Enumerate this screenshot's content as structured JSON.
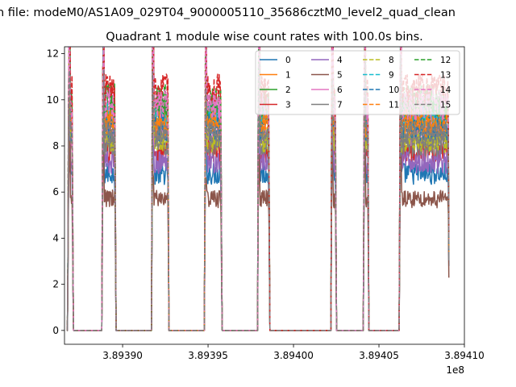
{
  "figure": {
    "suptitle": "n file: modeM0/AS1A09_029T04_9000005110_35686cztM0_level2_quad_clean"
  },
  "chart_data": {
    "type": "line",
    "title": "Quadrant 1 module wise count rates with 100.0s bins.",
    "xlabel": "",
    "ylabel": "",
    "x_offset_label": "1e8",
    "xlim": [
      3.893866,
      3.8941
    ],
    "ylim": [
      -0.6,
      12.3
    ],
    "x_ticks": [
      3.8939,
      3.89395,
      3.894,
      3.89405,
      3.8941
    ],
    "x_tick_labels": [
      "3.89390",
      "3.89395",
      "3.89400",
      "3.89405",
      "3.89410"
    ],
    "y_ticks": [
      0,
      2,
      4,
      6,
      8,
      10,
      12
    ],
    "y_tick_labels": [
      "0",
      "2",
      "4",
      "6",
      "8",
      "10",
      "12"
    ],
    "legend_position": "upper right",
    "legend_columns": 4,
    "grid": false,
    "observation_segments": [
      {
        "x_start": 3.893868,
        "x_end": 3.893871
      },
      {
        "x_start": 3.893888,
        "x_end": 3.893896
      },
      {
        "x_start": 3.893917,
        "x_end": 3.893927
      },
      {
        "x_start": 3.893948,
        "x_end": 3.893958
      },
      {
        "x_start": 3.893979,
        "x_end": 3.893986
      },
      {
        "x_start": 3.894022,
        "x_end": 3.894025
      },
      {
        "x_start": 3.894041,
        "x_end": 3.894044
      },
      {
        "x_start": 3.894062,
        "x_end": 3.894091
      }
    ],
    "series": [
      {
        "name": "0",
        "color": "#1f77b4",
        "dash": "solid",
        "level": 6.8
      },
      {
        "name": "1",
        "color": "#ff7f0e",
        "dash": "solid",
        "level": 9.2
      },
      {
        "name": "2",
        "color": "#2ca02c",
        "dash": "solid",
        "level": 9.6
      },
      {
        "name": "3",
        "color": "#d62728",
        "dash": "solid",
        "level": 7.8
      },
      {
        "name": "4",
        "color": "#9467bd",
        "dash": "solid",
        "level": 7.3
      },
      {
        "name": "5",
        "color": "#8c564b",
        "dash": "solid",
        "level": 5.7
      },
      {
        "name": "6",
        "color": "#e377c2",
        "dash": "solid",
        "level": 8.6
      },
      {
        "name": "7",
        "color": "#7f7f7f",
        "dash": "solid",
        "level": 8.1
      },
      {
        "name": "8",
        "color": "#bcbd22",
        "dash": "dashed",
        "level": 8.3
      },
      {
        "name": "9",
        "color": "#17becf",
        "dash": "dashed",
        "level": 9.3
      },
      {
        "name": "10",
        "color": "#1f77b4",
        "dash": "dashed",
        "level": 8.8
      },
      {
        "name": "11",
        "color": "#ff7f0e",
        "dash": "dashed",
        "level": 9.0
      },
      {
        "name": "12",
        "color": "#2ca02c",
        "dash": "dashed",
        "level": 10.0
      },
      {
        "name": "13",
        "color": "#d62728",
        "dash": "dashed",
        "level": 10.4
      },
      {
        "name": "14",
        "color": "#e377c2",
        "dash": "dashed",
        "level": 9.8
      },
      {
        "name": "15",
        "color": "#7f7f7f",
        "dash": "dashed",
        "level": 8.5
      }
    ]
  }
}
